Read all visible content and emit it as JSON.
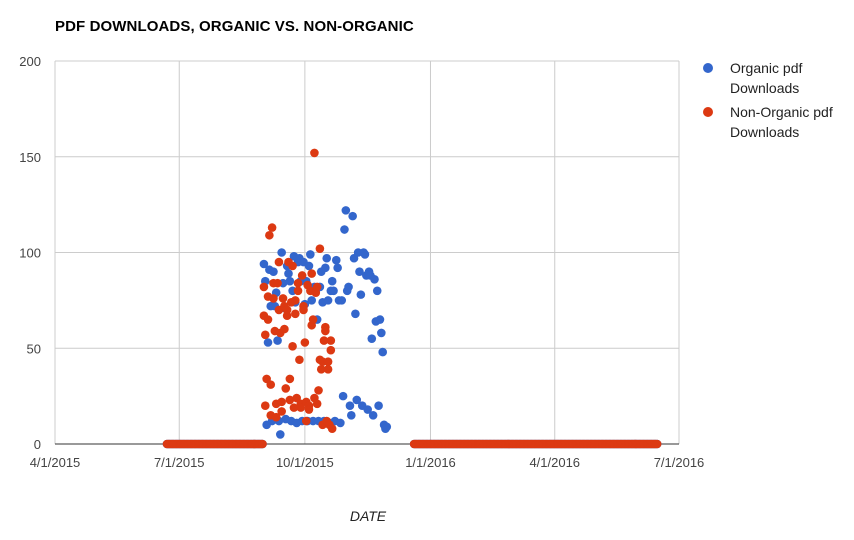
{
  "chart_data": {
    "type": "scatter",
    "title": "PDF DOWNLOADS, ORGANIC VS. NON-ORGANIC",
    "xlabel": "DATE",
    "ylabel": "",
    "ylim": [
      0,
      200
    ],
    "xlim": [
      "2015-04-01",
      "2016-07-01"
    ],
    "x_ticks": [
      "4/1/2015",
      "7/1/2015",
      "10/1/2015",
      "1/1/2016",
      "4/1/2016",
      "7/1/2016"
    ],
    "y_ticks": [
      0,
      50,
      100,
      150,
      200
    ],
    "grid": true,
    "legend": "right",
    "series": [
      {
        "name": "Organic pdf Downloads",
        "color": "#3366cc",
        "zero_range": [
          [
            "2015-06-22",
            "2015-08-31"
          ],
          [
            "2015-12-20",
            "2016-06-15"
          ]
        ],
        "points": [
          [
            "2015-09-01",
            94
          ],
          [
            "2015-09-02",
            85
          ],
          [
            "2015-09-03",
            10
          ],
          [
            "2015-09-04",
            53
          ],
          [
            "2015-09-05",
            91
          ],
          [
            "2015-09-06",
            72
          ],
          [
            "2015-09-07",
            12
          ],
          [
            "2015-09-08",
            90
          ],
          [
            "2015-09-09",
            72
          ],
          [
            "2015-09-10",
            79
          ],
          [
            "2015-09-11",
            54
          ],
          [
            "2015-09-12",
            12
          ],
          [
            "2015-09-13",
            5
          ],
          [
            "2015-09-14",
            100
          ],
          [
            "2015-09-15",
            84
          ],
          [
            "2015-09-16",
            71
          ],
          [
            "2015-09-17",
            13
          ],
          [
            "2015-09-18",
            93
          ],
          [
            "2015-09-19",
            89
          ],
          [
            "2015-09-20",
            85
          ],
          [
            "2015-09-21",
            12
          ],
          [
            "2015-09-22",
            80
          ],
          [
            "2015-09-23",
            98
          ],
          [
            "2015-09-24",
            74
          ],
          [
            "2015-09-25",
            11
          ],
          [
            "2015-09-26",
            95
          ],
          [
            "2015-09-27",
            97
          ],
          [
            "2015-09-28",
            85
          ],
          [
            "2015-09-29",
            12
          ],
          [
            "2015-09-30",
            95
          ],
          [
            "2015-10-01",
            73
          ],
          [
            "2015-10-02",
            85
          ],
          [
            "2015-10-03",
            12
          ],
          [
            "2015-10-04",
            93
          ],
          [
            "2015-10-05",
            99
          ],
          [
            "2015-10-06",
            75
          ],
          [
            "2015-10-07",
            12
          ],
          [
            "2015-10-08",
            82
          ],
          [
            "2015-10-09",
            80
          ],
          [
            "2015-10-10",
            65
          ],
          [
            "2015-10-11",
            12
          ],
          [
            "2015-10-12",
            82
          ],
          [
            "2015-10-13",
            90
          ],
          [
            "2015-10-14",
            74
          ],
          [
            "2015-10-15",
            12
          ],
          [
            "2015-10-16",
            92
          ],
          [
            "2015-10-17",
            97
          ],
          [
            "2015-10-18",
            75
          ],
          [
            "2015-10-19",
            11
          ],
          [
            "2015-10-20",
            80
          ],
          [
            "2015-10-21",
            85
          ],
          [
            "2015-10-22",
            80
          ],
          [
            "2015-10-23",
            12
          ],
          [
            "2015-10-24",
            96
          ],
          [
            "2015-10-25",
            92
          ],
          [
            "2015-10-26",
            75
          ],
          [
            "2015-10-27",
            11
          ],
          [
            "2015-10-28",
            75
          ],
          [
            "2015-10-29",
            25
          ],
          [
            "2015-10-30",
            112
          ],
          [
            "2015-10-31",
            122
          ],
          [
            "2015-11-01",
            80
          ],
          [
            "2015-11-02",
            82
          ],
          [
            "2015-11-03",
            20
          ],
          [
            "2015-11-04",
            15
          ],
          [
            "2015-11-05",
            119
          ],
          [
            "2015-11-06",
            97
          ],
          [
            "2015-11-07",
            68
          ],
          [
            "2015-11-08",
            23
          ],
          [
            "2015-11-09",
            100
          ],
          [
            "2015-11-10",
            90
          ],
          [
            "2015-11-11",
            78
          ],
          [
            "2015-11-12",
            20
          ],
          [
            "2015-11-13",
            100
          ],
          [
            "2015-11-14",
            99
          ],
          [
            "2015-11-15",
            88
          ],
          [
            "2015-11-16",
            18
          ],
          [
            "2015-11-17",
            90
          ],
          [
            "2015-11-18",
            88
          ],
          [
            "2015-11-19",
            55
          ],
          [
            "2015-11-20",
            15
          ],
          [
            "2015-11-21",
            86
          ],
          [
            "2015-11-22",
            64
          ],
          [
            "2015-11-23",
            80
          ],
          [
            "2015-11-24",
            20
          ],
          [
            "2015-11-25",
            65
          ],
          [
            "2015-11-26",
            58
          ],
          [
            "2015-11-27",
            48
          ],
          [
            "2015-11-28",
            10
          ],
          [
            "2015-11-29",
            8
          ],
          [
            "2015-11-30",
            9
          ]
        ]
      },
      {
        "name": "Non-Organic pdf Downloads",
        "color": "#dc3912",
        "zero_range": [
          [
            "2015-06-22",
            "2015-08-31"
          ],
          [
            "2015-12-20",
            "2016-06-15"
          ]
        ],
        "points": [
          [
            "2015-09-01",
            82
          ],
          [
            "2015-09-01",
            67
          ],
          [
            "2015-09-02",
            57
          ],
          [
            "2015-09-02",
            20
          ],
          [
            "2015-09-03",
            34
          ],
          [
            "2015-09-04",
            77
          ],
          [
            "2015-09-04",
            65
          ],
          [
            "2015-09-05",
            109
          ],
          [
            "2015-09-06",
            31
          ],
          [
            "2015-09-06",
            15
          ],
          [
            "2015-09-07",
            113
          ],
          [
            "2015-09-08",
            84
          ],
          [
            "2015-09-08",
            76
          ],
          [
            "2015-09-09",
            59
          ],
          [
            "2015-09-10",
            21
          ],
          [
            "2015-09-10",
            14
          ],
          [
            "2015-09-11",
            84
          ],
          [
            "2015-09-12",
            95
          ],
          [
            "2015-09-12",
            70
          ],
          [
            "2015-09-13",
            58
          ],
          [
            "2015-09-14",
            22
          ],
          [
            "2015-09-14",
            17
          ],
          [
            "2015-09-15",
            76
          ],
          [
            "2015-09-16",
            72
          ],
          [
            "2015-09-16",
            60
          ],
          [
            "2015-09-17",
            29
          ],
          [
            "2015-09-18",
            70
          ],
          [
            "2015-09-18",
            67
          ],
          [
            "2015-09-19",
            95
          ],
          [
            "2015-09-20",
            23
          ],
          [
            "2015-09-20",
            34
          ],
          [
            "2015-09-21",
            74
          ],
          [
            "2015-09-22",
            93
          ],
          [
            "2015-09-22",
            51
          ],
          [
            "2015-09-23",
            19
          ],
          [
            "2015-09-24",
            75
          ],
          [
            "2015-09-24",
            68
          ],
          [
            "2015-09-25",
            24
          ],
          [
            "2015-09-26",
            84
          ],
          [
            "2015-09-26",
            80
          ],
          [
            "2015-09-27",
            44
          ],
          [
            "2015-09-28",
            21
          ],
          [
            "2015-09-28",
            19
          ],
          [
            "2015-09-29",
            88
          ],
          [
            "2015-09-30",
            72
          ],
          [
            "2015-09-30",
            70
          ],
          [
            "2015-10-01",
            53
          ],
          [
            "2015-10-02",
            12
          ],
          [
            "2015-10-02",
            22
          ],
          [
            "2015-10-03",
            83
          ],
          [
            "2015-10-04",
            20
          ],
          [
            "2015-10-04",
            18
          ],
          [
            "2015-10-05",
            80
          ],
          [
            "2015-10-06",
            89
          ],
          [
            "2015-10-06",
            62
          ],
          [
            "2015-10-07",
            65
          ],
          [
            "2015-10-08",
            152
          ],
          [
            "2015-10-08",
            24
          ],
          [
            "2015-10-09",
            79
          ],
          [
            "2015-10-10",
            82
          ],
          [
            "2015-10-10",
            21
          ],
          [
            "2015-10-11",
            28
          ],
          [
            "2015-10-12",
            102
          ],
          [
            "2015-10-12",
            44
          ],
          [
            "2015-10-13",
            39
          ],
          [
            "2015-10-14",
            43
          ],
          [
            "2015-10-14",
            10
          ],
          [
            "2015-10-15",
            54
          ],
          [
            "2015-10-16",
            61
          ],
          [
            "2015-10-16",
            59
          ],
          [
            "2015-10-17",
            12
          ],
          [
            "2015-10-18",
            43
          ],
          [
            "2015-10-18",
            39
          ],
          [
            "2015-10-19",
            10
          ],
          [
            "2015-10-20",
            54
          ],
          [
            "2015-10-20",
            49
          ],
          [
            "2015-10-21",
            8
          ]
        ]
      }
    ]
  }
}
